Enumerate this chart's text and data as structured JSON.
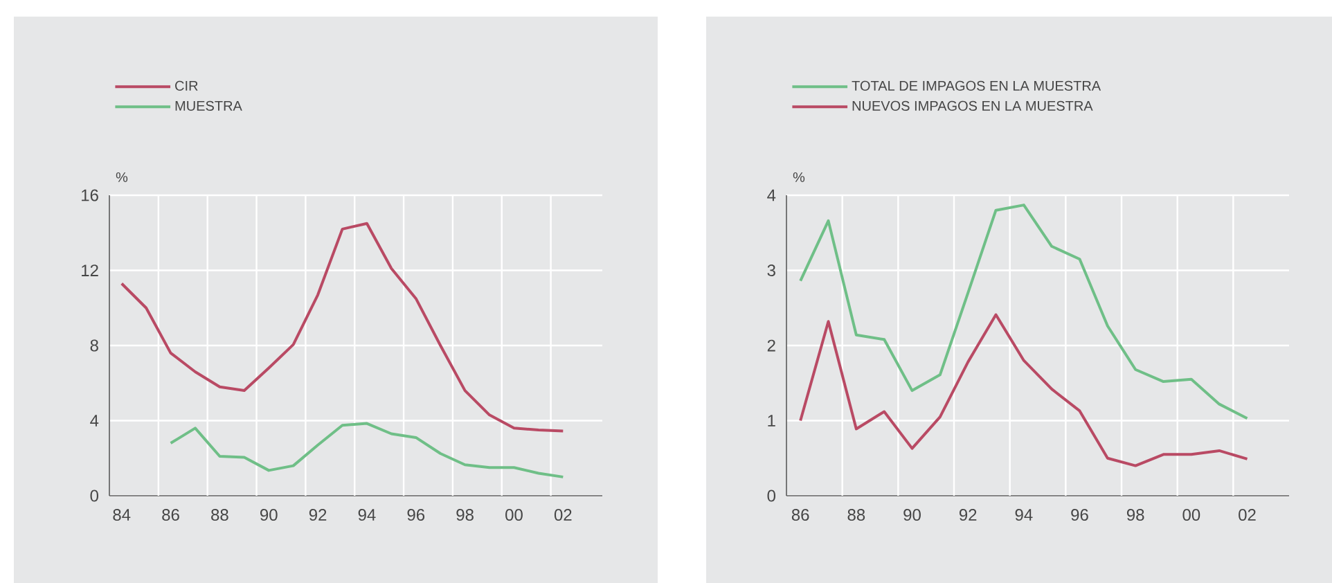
{
  "chart_data": [
    {
      "type": "line",
      "ylabel": "%",
      "x": [
        1984,
        1985,
        1986,
        1987,
        1988,
        1989,
        1990,
        1991,
        1992,
        1993,
        1994,
        1995,
        1996,
        1997,
        1998,
        1999,
        2000,
        2001,
        2002
      ],
      "series": [
        {
          "name": "CIR",
          "color": "#b94a64",
          "values": [
            11.3,
            10.0,
            7.6,
            6.6,
            5.8,
            5.6,
            6.8,
            8.05,
            10.7,
            14.2,
            14.5,
            12.1,
            10.5,
            8.0,
            5.6,
            4.3,
            3.6,
            3.5,
            3.45
          ]
        },
        {
          "name": "MUESTRA",
          "color": "#6fbf87",
          "values": [
            null,
            null,
            2.8,
            3.6,
            2.1,
            2.05,
            1.35,
            1.6,
            2.7,
            3.75,
            3.85,
            3.3,
            3.1,
            2.25,
            1.65,
            1.5,
            1.5,
            1.2,
            1.0
          ]
        }
      ],
      "xlim": [
        1983.5,
        2003.6
      ],
      "xticks": [
        {
          "value": 1984,
          "label": "84"
        },
        {
          "value": 1985.5,
          "label": null
        },
        {
          "value": 1986,
          "label": "86"
        },
        {
          "value": 1987.5,
          "label": null
        },
        {
          "value": 1988,
          "label": "88"
        },
        {
          "value": 1989.5,
          "label": null
        },
        {
          "value": 1990,
          "label": "90"
        },
        {
          "value": 1991.5,
          "label": null
        },
        {
          "value": 1992,
          "label": "92"
        },
        {
          "value": 1993.5,
          "label": null
        },
        {
          "value": 1994,
          "label": "94"
        },
        {
          "value": 1995.5,
          "label": null
        },
        {
          "value": 1996,
          "label": "96"
        },
        {
          "value": 1997.5,
          "label": null
        },
        {
          "value": 1998,
          "label": "98"
        },
        {
          "value": 1999.5,
          "label": null
        },
        {
          "value": 2000,
          "label": "00"
        },
        {
          "value": 2001.5,
          "label": null
        },
        {
          "value": 2002,
          "label": "02"
        }
      ],
      "ylim": [
        0,
        16
      ],
      "yticks": [
        0,
        4,
        8,
        12,
        16
      ],
      "grid": true,
      "legend": "top left"
    },
    {
      "type": "line",
      "ylabel": "%",
      "x": [
        1986,
        1987,
        1988,
        1989,
        1990,
        1991,
        1992,
        1993,
        1994,
        1995,
        1996,
        1997,
        1998,
        1999,
        2000,
        2001,
        2002
      ],
      "series": [
        {
          "name": "TOTAL DE IMPAGOS EN LA MUESTRA",
          "color": "#6fbf87",
          "values": [
            2.86,
            3.66,
            2.14,
            2.08,
            1.4,
            1.61,
            2.7,
            3.8,
            3.87,
            3.32,
            3.15,
            2.26,
            1.68,
            1.52,
            1.55,
            1.22,
            1.03
          ]
        },
        {
          "name": "NUEVOS IMPAGOS EN LA MUESTRA",
          "color": "#b94a64",
          "values": [
            1.0,
            2.32,
            0.89,
            1.12,
            0.63,
            1.05,
            1.78,
            2.41,
            1.8,
            1.42,
            1.13,
            0.5,
            0.4,
            0.55,
            0.55,
            0.6,
            0.49
          ]
        }
      ],
      "xlim": [
        1985.5,
        2003.5
      ],
      "xticks": [
        {
          "value": 1986,
          "label": "86"
        },
        {
          "value": 1987.5,
          "label": null
        },
        {
          "value": 1988,
          "label": "88"
        },
        {
          "value": 1989.5,
          "label": null
        },
        {
          "value": 1990,
          "label": "90"
        },
        {
          "value": 1991.5,
          "label": null
        },
        {
          "value": 1992,
          "label": "92"
        },
        {
          "value": 1993.5,
          "label": null
        },
        {
          "value": 1994,
          "label": "94"
        },
        {
          "value": 1995.5,
          "label": null
        },
        {
          "value": 1996,
          "label": "96"
        },
        {
          "value": 1997.5,
          "label": null
        },
        {
          "value": 1998,
          "label": "98"
        },
        {
          "value": 1999.5,
          "label": null
        },
        {
          "value": 2000,
          "label": "00"
        },
        {
          "value": 2001.5,
          "label": null
        },
        {
          "value": 2002,
          "label": "02"
        }
      ],
      "ylim": [
        0,
        4
      ],
      "yticks": [
        0,
        1,
        2,
        3,
        4
      ],
      "grid": true,
      "legend": "top left"
    }
  ]
}
